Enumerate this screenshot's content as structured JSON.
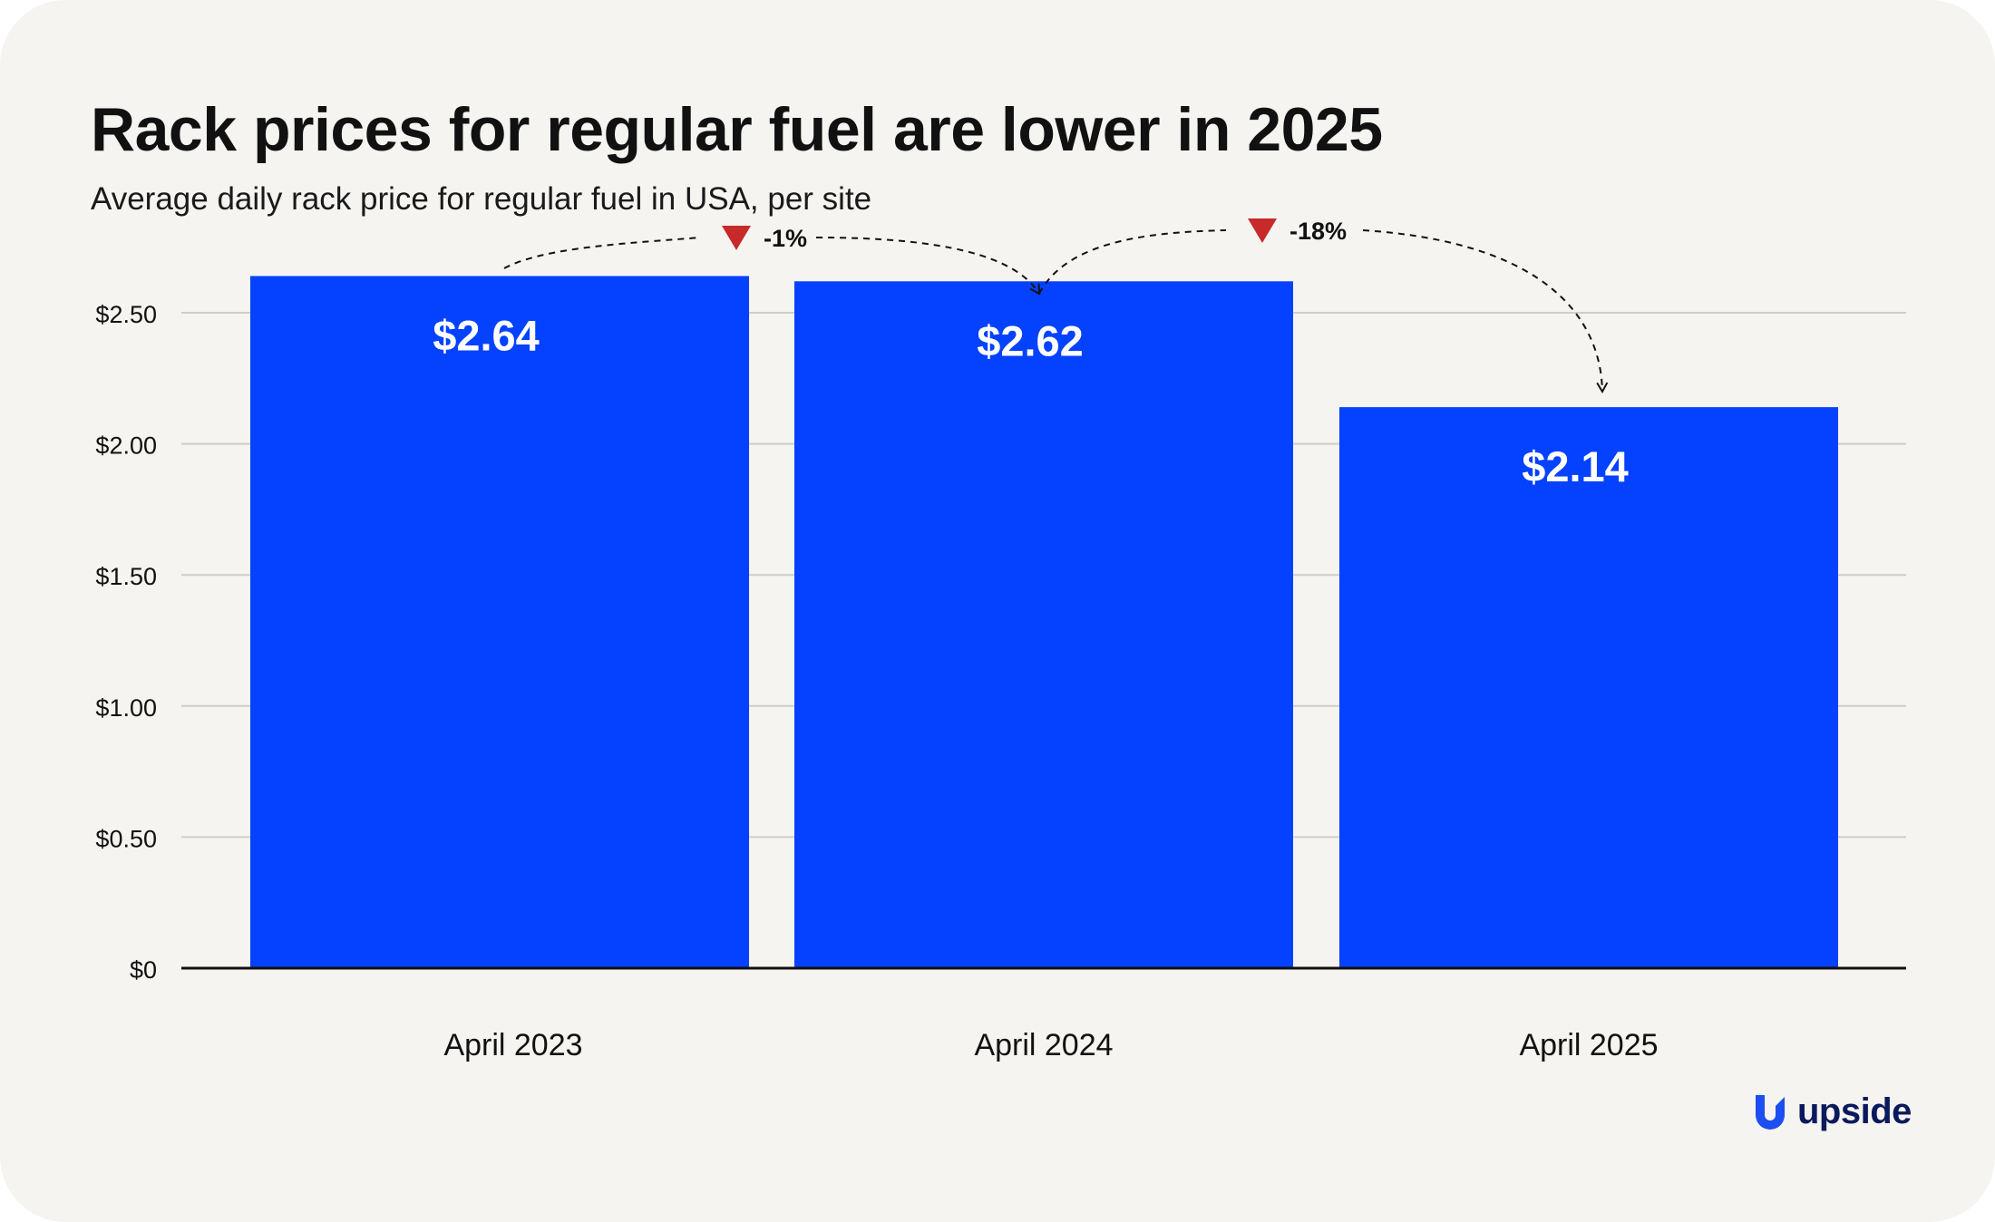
{
  "chart_data": {
    "type": "bar",
    "title": "Rack prices for regular fuel are lower in 2025",
    "subtitle": "Average daily rack price for regular fuel in USA, per site",
    "categories": [
      "April 2023",
      "April 2024",
      "April 2025"
    ],
    "values": [
      2.64,
      2.62,
      2.14
    ],
    "value_labels": [
      "$2.64",
      "$2.62",
      "$2.14"
    ],
    "ylim": [
      0,
      2.75
    ],
    "y_ticks": [
      0,
      0.5,
      1.0,
      1.5,
      2.0,
      2.5
    ],
    "y_tick_labels": [
      "$0",
      "$0.50",
      "$1.00",
      "$1.50",
      "$2.00",
      "$2.50"
    ],
    "xlabel": "",
    "ylabel": "",
    "grid": true,
    "legend": "none",
    "bar_color": "#0442ff",
    "annotations": [
      {
        "from": 0,
        "to": 1,
        "label": "-1%",
        "direction": "down"
      },
      {
        "from": 1,
        "to": 2,
        "label": "-18%",
        "direction": "down"
      }
    ],
    "annotation_color": "#c62a2a"
  },
  "brand": {
    "name": "upside",
    "icon": "upside-logo-icon",
    "color": "#1d4ef0"
  }
}
